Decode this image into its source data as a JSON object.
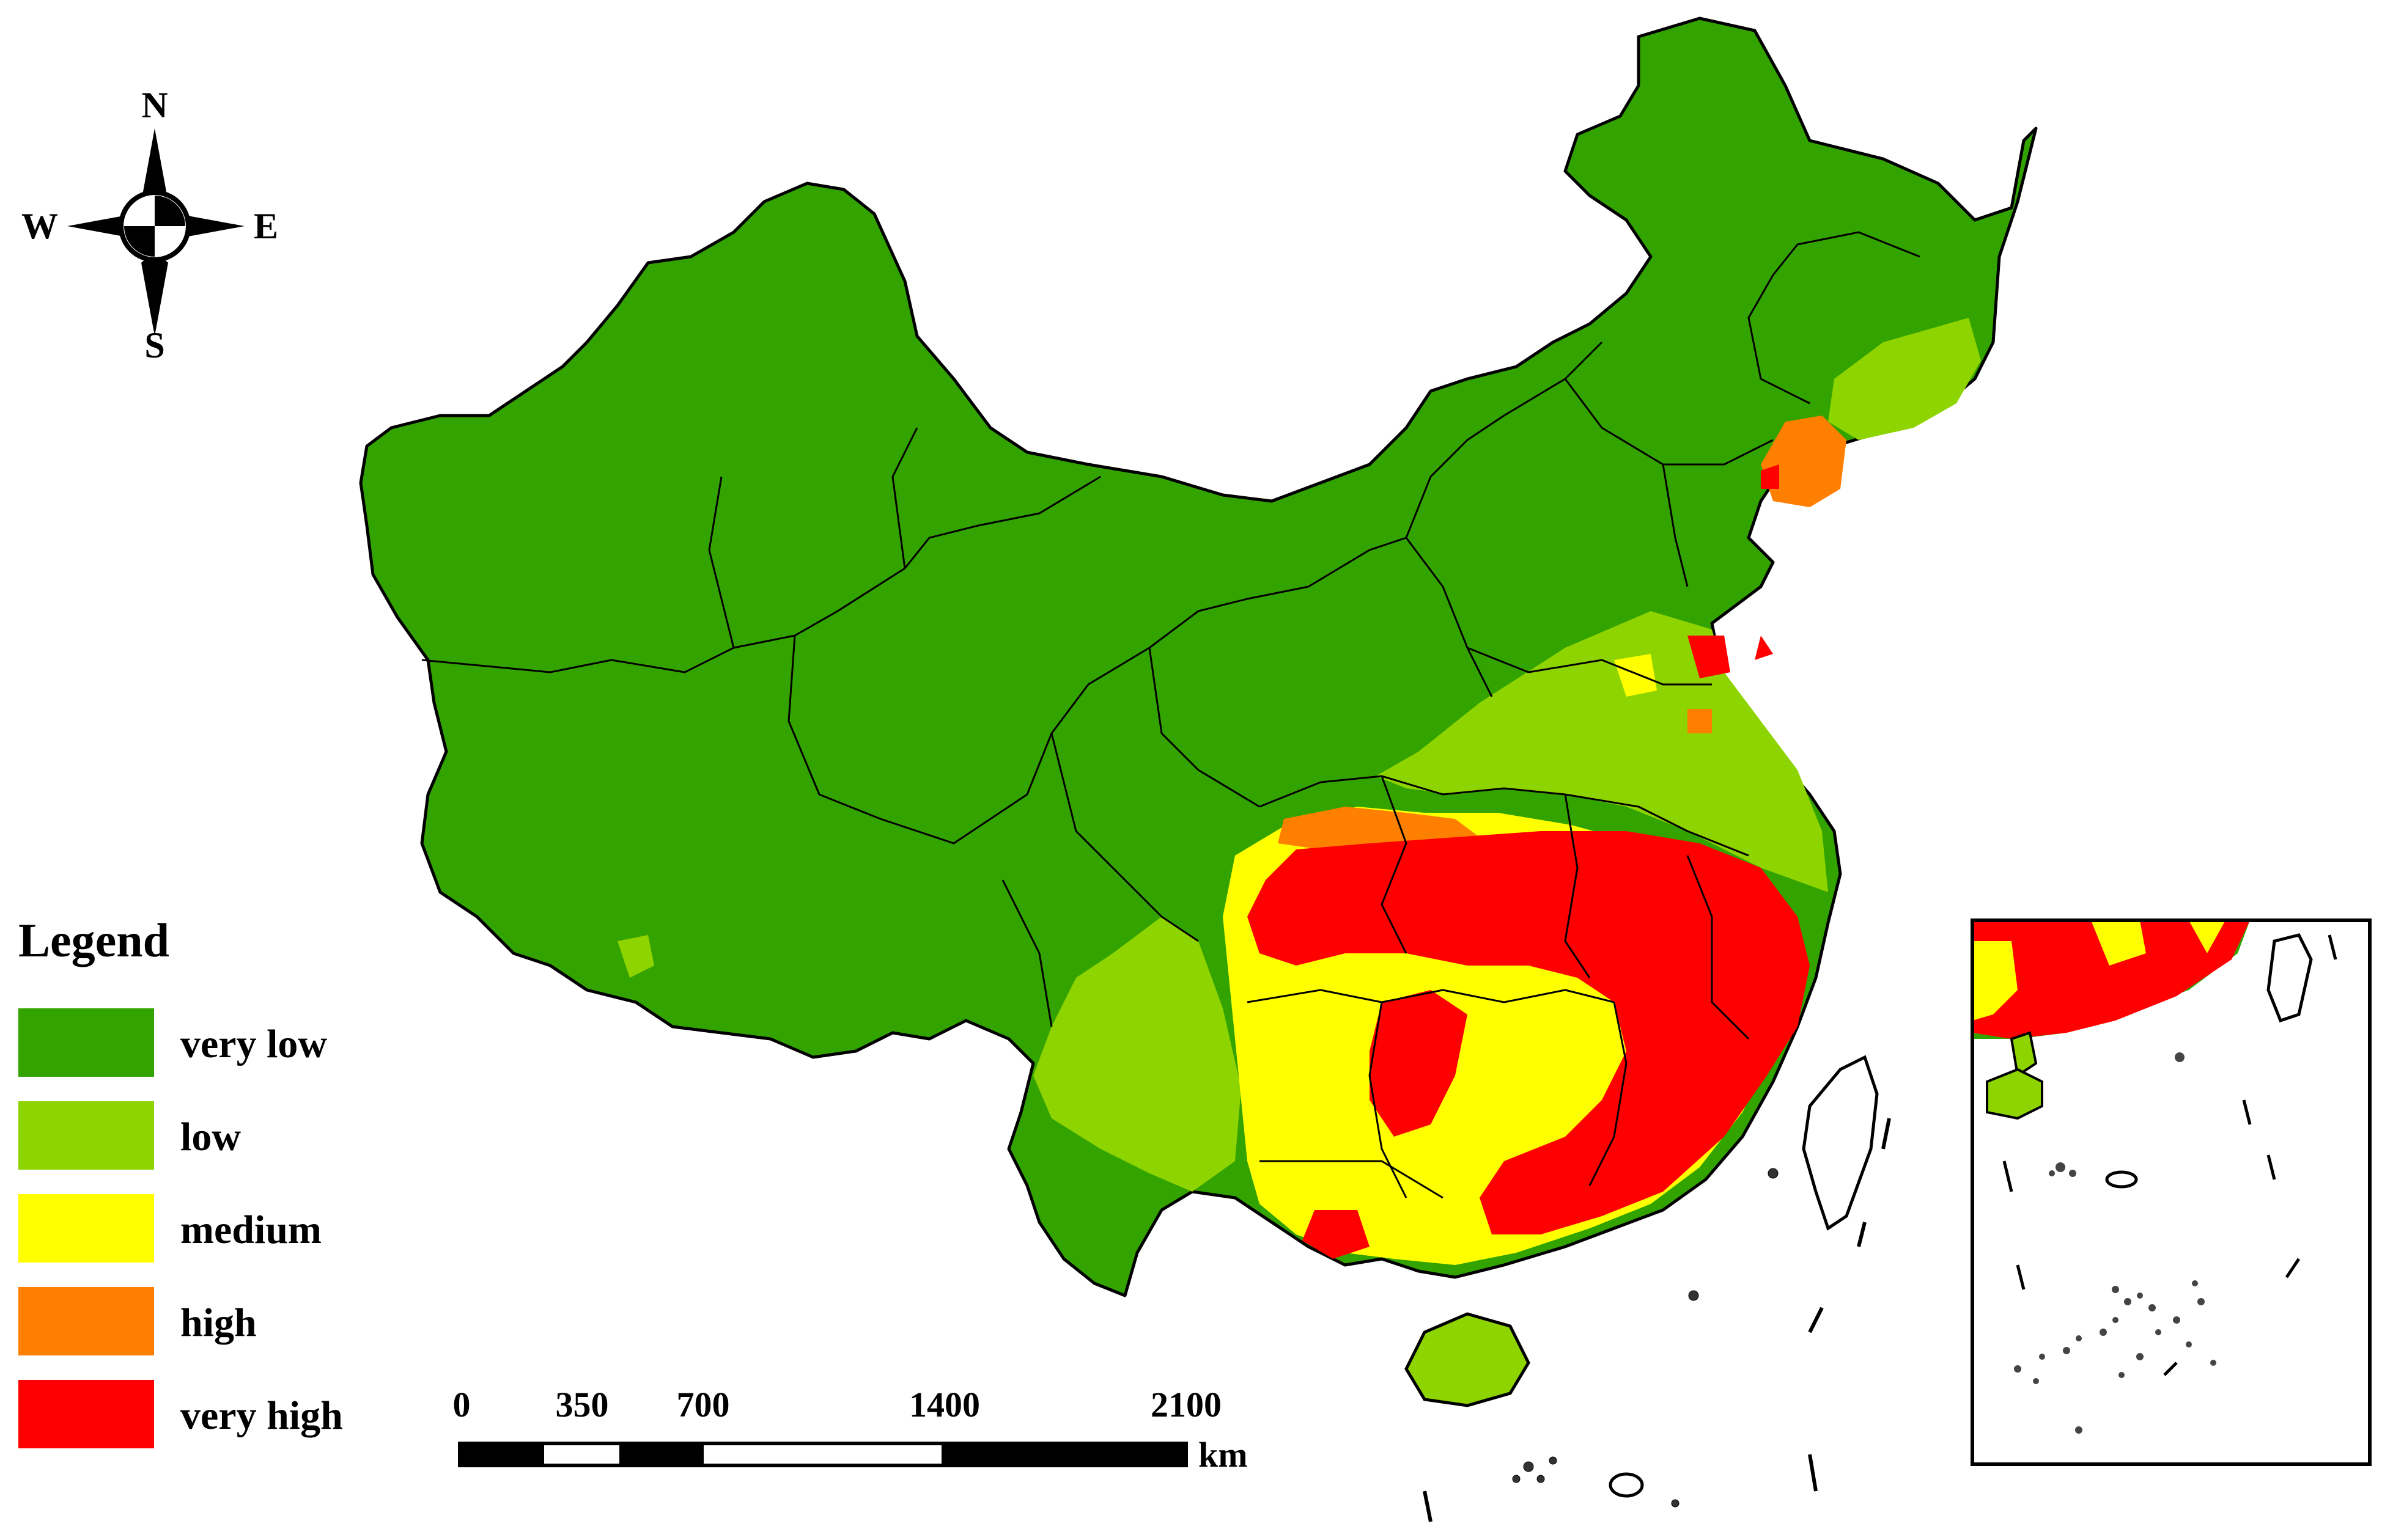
{
  "compass": {
    "north": "N",
    "south": "S",
    "east": "E",
    "west": "W"
  },
  "legend": {
    "title": "Legend",
    "items": [
      {
        "label": "very low",
        "color": "#33a300"
      },
      {
        "label": "low",
        "color": "#8ed400"
      },
      {
        "label": "medium",
        "color": "#ffff00"
      },
      {
        "label": "high",
        "color": "#ff8000"
      },
      {
        "label": "very high",
        "color": "#ff0000"
      }
    ]
  },
  "scale_bar": {
    "ticks": [
      "0",
      "350",
      "700",
      "1400",
      "2100"
    ],
    "unit": "km"
  },
  "map_colors": {
    "very_low": "#33a300",
    "low": "#8ed400",
    "medium": "#ffff00",
    "high": "#ff8000",
    "very_high": "#ff0000",
    "boundary": "#000000",
    "background": "#ffffff"
  }
}
